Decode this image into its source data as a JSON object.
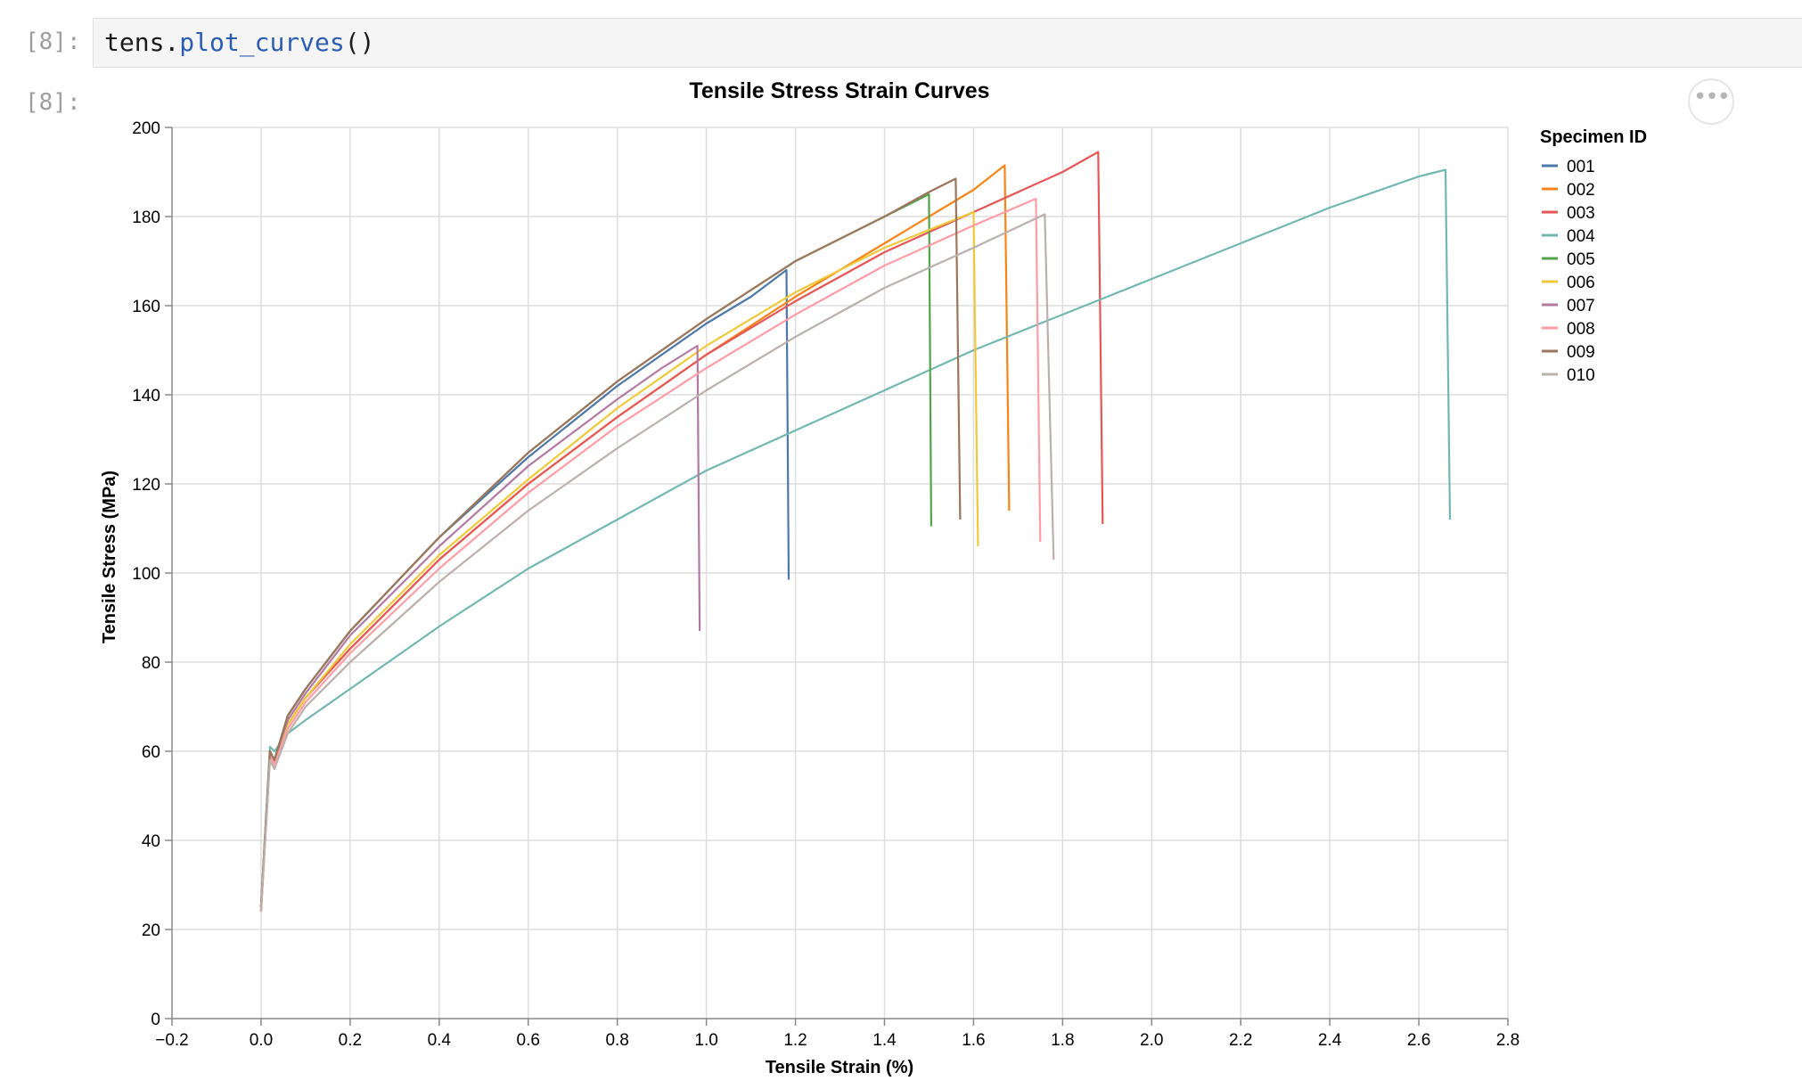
{
  "cells": [
    {
      "input_prompt": "[8]:",
      "code_object": "tens.",
      "code_function": "plot_curves",
      "code_parens": "()",
      "output_prompt": "[8]:"
    }
  ],
  "chart_menu": {
    "icon": "ellipsis-icon",
    "label": "•••"
  },
  "chart_data": {
    "type": "line",
    "title": "Tensile Stress Strain Curves",
    "xlabel": "Tensile Strain (%)",
    "ylabel": "Tensile Stress (MPa)",
    "xlim": [
      -0.2,
      2.8
    ],
    "ylim": [
      0,
      200
    ],
    "xticks": [
      "−0.2",
      "0.0",
      "0.2",
      "0.4",
      "0.6",
      "0.8",
      "1.0",
      "1.2",
      "1.4",
      "1.6",
      "1.8",
      "2.0",
      "2.2",
      "2.4",
      "2.6",
      "2.8"
    ],
    "xtick_values": [
      -0.2,
      0.0,
      0.2,
      0.4,
      0.6,
      0.8,
      1.0,
      1.2,
      1.4,
      1.6,
      1.8,
      2.0,
      2.2,
      2.4,
      2.6,
      2.8
    ],
    "yticks": [
      "0",
      "20",
      "40",
      "60",
      "80",
      "100",
      "120",
      "140",
      "160",
      "180",
      "200"
    ],
    "ytick_values": [
      0,
      20,
      40,
      60,
      80,
      100,
      120,
      140,
      160,
      180,
      200
    ],
    "grid": true,
    "legend_title": "Specimen ID",
    "legend_position": "right",
    "series": [
      {
        "name": "001",
        "color": "#4c78a8",
        "x": [
          0.0,
          0.02,
          0.03,
          0.06,
          0.1,
          0.2,
          0.4,
          0.6,
          0.8,
          1.0,
          1.1,
          1.18,
          1.185
        ],
        "y": [
          25,
          60,
          58,
          68,
          74,
          87,
          108,
          126,
          142,
          156,
          162,
          168,
          98.5
        ]
      },
      {
        "name": "002",
        "color": "#f58518",
        "x": [
          0.0,
          0.02,
          0.03,
          0.06,
          0.1,
          0.2,
          0.4,
          0.6,
          0.8,
          1.0,
          1.2,
          1.4,
          1.6,
          1.67,
          1.68
        ],
        "y": [
          24,
          59,
          57,
          66,
          72,
          83,
          103,
          120,
          135,
          149,
          162,
          174,
          186,
          191.5,
          114
        ]
      },
      {
        "name": "003",
        "color": "#e45756",
        "x": [
          0.0,
          0.02,
          0.03,
          0.06,
          0.1,
          0.2,
          0.4,
          0.6,
          0.8,
          1.0,
          1.2,
          1.4,
          1.6,
          1.8,
          1.88,
          1.89
        ],
        "y": [
          24,
          59,
          57,
          66,
          72,
          83,
          103,
          120,
          135,
          149,
          161,
          172,
          181,
          190,
          194.5,
          111
        ]
      },
      {
        "name": "004",
        "color": "#72b7b2",
        "x": [
          0.0,
          0.02,
          0.03,
          0.06,
          0.1,
          0.2,
          0.4,
          0.6,
          0.8,
          1.0,
          1.2,
          1.4,
          1.6,
          1.8,
          2.0,
          2.2,
          2.4,
          2.6,
          2.66,
          2.67
        ],
        "y": [
          25,
          61,
          60,
          64,
          67,
          74,
          88,
          101,
          112,
          123,
          132,
          141,
          150,
          158,
          166,
          174,
          182,
          189,
          190.5,
          112
        ]
      },
      {
        "name": "005",
        "color": "#54a24b",
        "x": [
          0.0,
          0.02,
          0.03,
          0.06,
          0.1,
          0.2,
          0.4,
          0.6,
          0.8,
          1.0,
          1.2,
          1.4,
          1.5,
          1.505
        ],
        "y": [
          25,
          60,
          58,
          68,
          74,
          87,
          108,
          127,
          143,
          157,
          170,
          180,
          185,
          110.5
        ]
      },
      {
        "name": "006",
        "color": "#eeca3b",
        "x": [
          0.0,
          0.02,
          0.03,
          0.06,
          0.1,
          0.2,
          0.4,
          0.6,
          0.8,
          1.0,
          1.2,
          1.4,
          1.6,
          1.61
        ],
        "y": [
          24,
          59,
          57,
          66,
          72,
          84,
          104,
          121,
          137,
          151,
          163,
          173,
          181,
          106
        ]
      },
      {
        "name": "007",
        "color": "#b279a2",
        "x": [
          0.0,
          0.02,
          0.03,
          0.06,
          0.1,
          0.2,
          0.4,
          0.6,
          0.8,
          0.9,
          0.98,
          0.985
        ],
        "y": [
          25,
          60,
          58,
          67,
          73,
          86,
          106,
          124,
          139,
          146,
          151,
          87
        ]
      },
      {
        "name": "008",
        "color": "#ff9da6",
        "x": [
          0.0,
          0.02,
          0.03,
          0.06,
          0.1,
          0.2,
          0.4,
          0.6,
          0.8,
          1.0,
          1.2,
          1.4,
          1.6,
          1.74,
          1.75
        ],
        "y": [
          24,
          59,
          57,
          65,
          71,
          82,
          101,
          118,
          133,
          146,
          158,
          169,
          178,
          184,
          107
        ]
      },
      {
        "name": "009",
        "color": "#9d755d",
        "x": [
          0.0,
          0.02,
          0.03,
          0.06,
          0.1,
          0.2,
          0.4,
          0.6,
          0.8,
          1.0,
          1.2,
          1.4,
          1.5,
          1.56,
          1.57
        ],
        "y": [
          25,
          60,
          58,
          68,
          74,
          87,
          108,
          127,
          143,
          157,
          170,
          180,
          185.5,
          188.5,
          112
        ]
      },
      {
        "name": "010",
        "color": "#bab0ac",
        "x": [
          0.0,
          0.02,
          0.03,
          0.06,
          0.1,
          0.2,
          0.4,
          0.6,
          0.8,
          1.0,
          1.2,
          1.4,
          1.6,
          1.76,
          1.78
        ],
        "y": [
          24,
          58,
          56,
          64,
          70,
          80,
          98,
          114,
          128,
          141,
          153,
          164,
          173,
          180.5,
          103
        ]
      }
    ]
  }
}
